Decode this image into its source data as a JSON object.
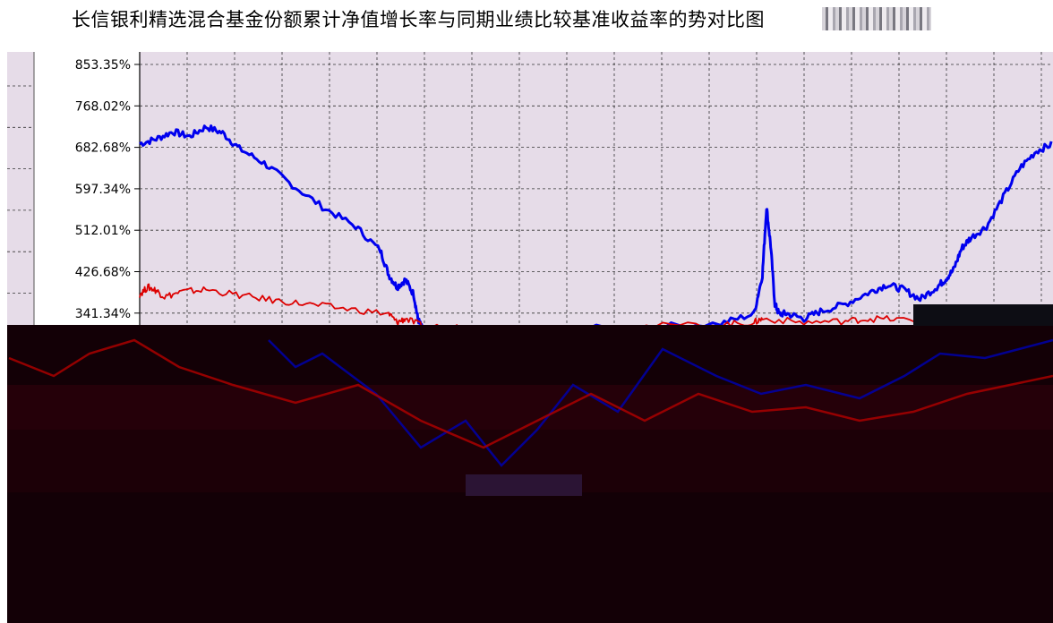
{
  "chart_data": {
    "type": "line",
    "title": "长信银利精选混合基金份额累计净值增长率与同期业绩比较基准收益率的",
    "title_tail": "势对比图",
    "y_ticks": [
      "853.35%",
      "768.02%",
      "682.68%",
      "597.34%",
      "512.01%",
      "426.68%",
      "341.34%"
    ],
    "ylim": [
      300,
      853.35
    ],
    "grid": true,
    "series": [
      {
        "color": "#0000ee",
        "points": [
          [
            0.0,
            690
          ],
          [
            0.02,
            700
          ],
          [
            0.04,
            715
          ],
          [
            0.06,
            705
          ],
          [
            0.08,
            725
          ],
          [
            0.1,
            712
          ],
          [
            0.12,
            680
          ],
          [
            0.15,
            650
          ],
          [
            0.18,
            610
          ],
          [
            0.22,
            560
          ],
          [
            0.26,
            520
          ],
          [
            0.29,
            470
          ],
          [
            0.3,
            420
          ],
          [
            0.31,
            395
          ],
          [
            0.32,
            410
          ],
          [
            0.33,
            380
          ],
          [
            0.335,
            330
          ],
          [
            0.34,
            310
          ],
          [
            0.4,
            305
          ],
          [
            0.5,
            308
          ],
          [
            0.6,
            312
          ],
          [
            0.7,
            320
          ],
          [
            0.74,
            340
          ],
          [
            0.75,
            420
          ],
          [
            0.755,
            560
          ],
          [
            0.76,
            480
          ],
          [
            0.765,
            360
          ],
          [
            0.77,
            340
          ],
          [
            0.78,
            340
          ],
          [
            0.8,
            330
          ],
          [
            0.82,
            345
          ],
          [
            0.85,
            360
          ],
          [
            0.88,
            385
          ],
          [
            0.9,
            400
          ],
          [
            0.92,
            390
          ],
          [
            0.94,
            370
          ],
          [
            0.96,
            395
          ],
          [
            0.97,
            410
          ],
          [
            0.98,
            430
          ],
          [
            0.99,
            475
          ],
          [
            1.0,
            495
          ],
          [
            1.02,
            520
          ],
          [
            1.04,
            580
          ],
          [
            1.06,
            640
          ],
          [
            1.08,
            675
          ],
          [
            1.1,
            690
          ]
        ]
      },
      {
        "color": "#dd0000",
        "points": [
          [
            0.0,
            380
          ],
          [
            0.01,
            395
          ],
          [
            0.02,
            388
          ],
          [
            0.03,
            375
          ],
          [
            0.05,
            385
          ],
          [
            0.08,
            390
          ],
          [
            0.12,
            378
          ],
          [
            0.16,
            368
          ],
          [
            0.2,
            360
          ],
          [
            0.25,
            350
          ],
          [
            0.3,
            340
          ],
          [
            0.31,
            322
          ],
          [
            0.32,
            330
          ],
          [
            0.34,
            315
          ],
          [
            0.4,
            310
          ],
          [
            0.5,
            312
          ],
          [
            0.6,
            314
          ],
          [
            0.7,
            318
          ],
          [
            0.74,
            322
          ],
          [
            0.75,
            330
          ],
          [
            0.8,
            322
          ],
          [
            0.85,
            325
          ],
          [
            0.88,
            330
          ],
          [
            0.92,
            328
          ],
          [
            0.96,
            325
          ],
          [
            1.0,
            326
          ],
          [
            1.04,
            330
          ],
          [
            1.07,
            340
          ],
          [
            1.1,
            355
          ]
        ]
      }
    ]
  }
}
